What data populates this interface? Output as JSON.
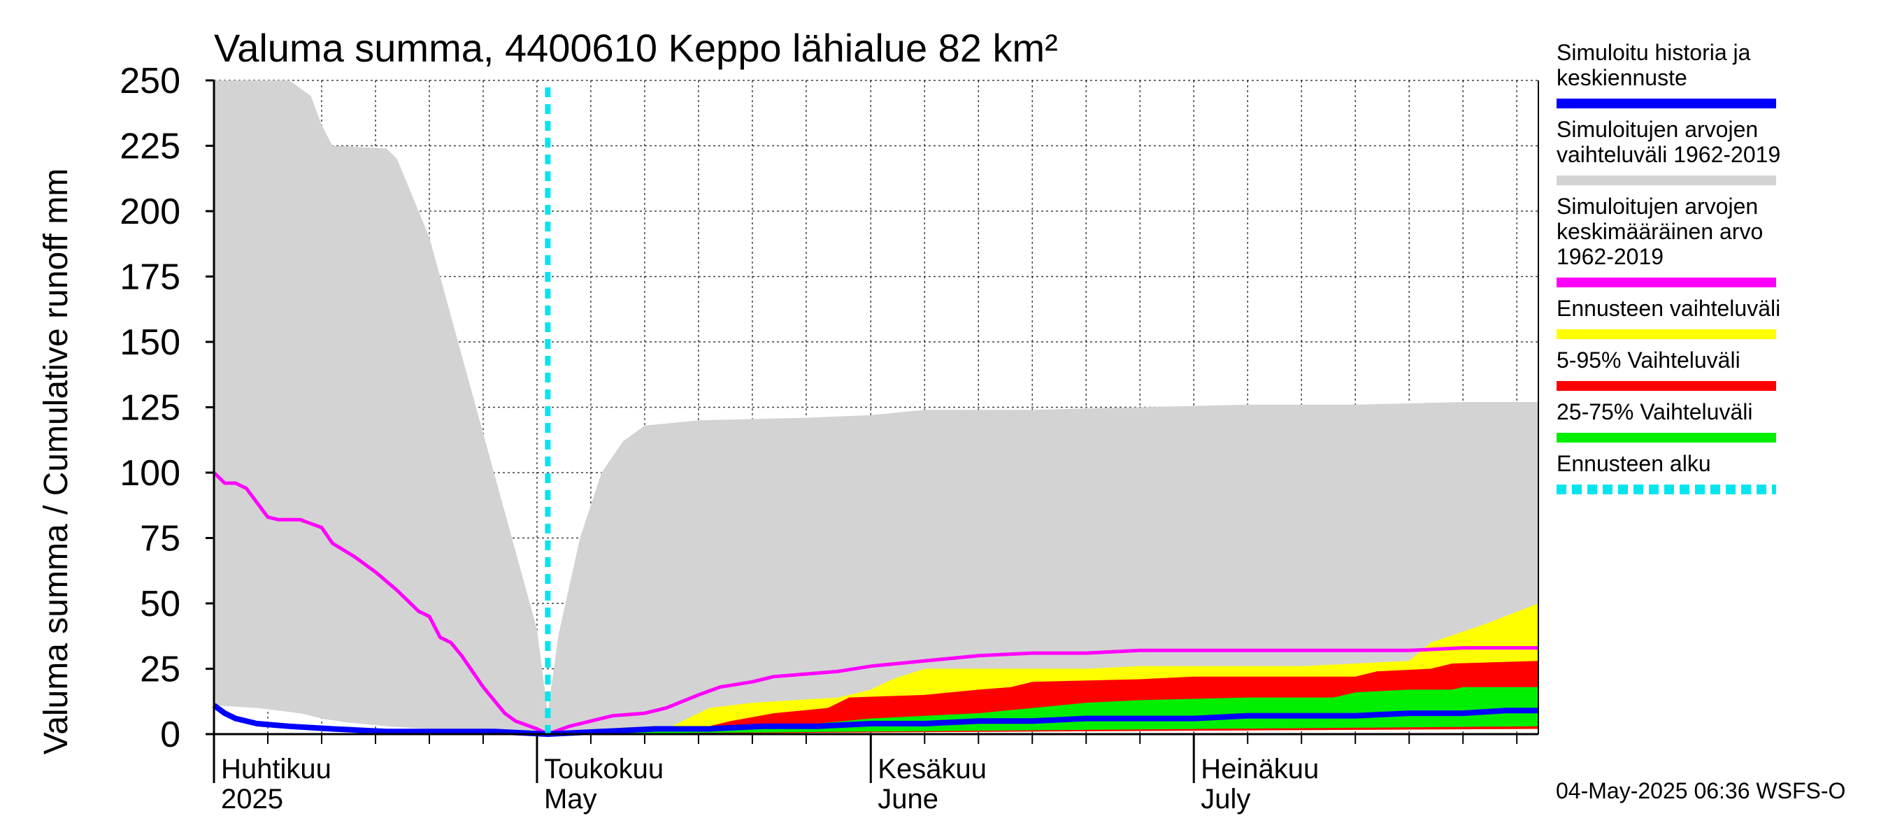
{
  "chart_data": {
    "type": "area",
    "title": "Valuma summa, 4400610 Keppo lähialue 82 km²",
    "ylabel": "Valuma summa / Cumulative runoff    mm",
    "xlabel": "",
    "ylim": [
      0,
      250
    ],
    "yticks": [
      "0",
      "25",
      "50",
      "75",
      "100",
      "125",
      "150",
      "175",
      "200",
      "225",
      "250"
    ],
    "x_unit": "day of season (day 0 = 1 April 2025)",
    "xlim": [
      0,
      123
    ],
    "forecast_start_day": 31,
    "months": [
      {
        "label_fi": "Huhtikuu",
        "label_en": "2025",
        "day": 0
      },
      {
        "label_fi": "Toukokuu",
        "label_en": "May",
        "day": 30
      },
      {
        "label_fi": "Kesäkuu",
        "label_en": "June",
        "day": 61
      },
      {
        "label_fi": "Heinäkuu",
        "label_en": "July",
        "day": 91
      }
    ],
    "grid_days": [
      0,
      5,
      10,
      15,
      20,
      25,
      30,
      35,
      40,
      45,
      50,
      55,
      61,
      66,
      71,
      76,
      81,
      86,
      91,
      96,
      101,
      106,
      111,
      116,
      121
    ],
    "series": [
      {
        "name": "Simuloitujen arvojen vaihteluväli 1962-2019",
        "role": "historical-range",
        "color": "#d3d3d3",
        "upper": [
          [
            0,
            250
          ],
          [
            7,
            250
          ],
          [
            9,
            244
          ],
          [
            10,
            233
          ],
          [
            11,
            225
          ],
          [
            16,
            224
          ],
          [
            17,
            220
          ],
          [
            18,
            210
          ],
          [
            20,
            190
          ],
          [
            22,
            160
          ],
          [
            24,
            130
          ],
          [
            26,
            100
          ],
          [
            28,
            70
          ],
          [
            30,
            40
          ],
          [
            31,
            8
          ],
          [
            32,
            38
          ],
          [
            34,
            75
          ],
          [
            36,
            100
          ],
          [
            38,
            112
          ],
          [
            40,
            118
          ],
          [
            45,
            120
          ],
          [
            55,
            121
          ],
          [
            61,
            122
          ],
          [
            66,
            124
          ],
          [
            76,
            124
          ],
          [
            86,
            125
          ],
          [
            96,
            126
          ],
          [
            106,
            126
          ],
          [
            116,
            127
          ],
          [
            123,
            127
          ]
        ],
        "lower": [
          [
            0,
            11
          ],
          [
            4,
            10
          ],
          [
            8,
            8
          ],
          [
            11,
            5
          ],
          [
            16,
            3
          ],
          [
            20,
            2
          ],
          [
            26,
            1
          ],
          [
            31,
            0
          ],
          [
            40,
            1
          ],
          [
            50,
            1
          ],
          [
            60,
            1
          ],
          [
            70,
            2
          ],
          [
            80,
            2
          ],
          [
            91,
            2
          ],
          [
            100,
            2
          ],
          [
            110,
            2
          ],
          [
            123,
            2
          ]
        ]
      },
      {
        "name": "Ennusteen vaihteluväli",
        "role": "forecast-range",
        "color": "#ffff00",
        "upper": [
          [
            31,
            0
          ],
          [
            42,
            2
          ],
          [
            44,
            6
          ],
          [
            46,
            10
          ],
          [
            50,
            12
          ],
          [
            58,
            14
          ],
          [
            61,
            17
          ],
          [
            63,
            21
          ],
          [
            66,
            25
          ],
          [
            81,
            25
          ],
          [
            86,
            26
          ],
          [
            91,
            26
          ],
          [
            101,
            26
          ],
          [
            111,
            28
          ],
          [
            113,
            35
          ],
          [
            118,
            42
          ],
          [
            123,
            50
          ]
        ],
        "lower": [
          [
            31,
            0
          ],
          [
            123,
            2
          ]
        ]
      },
      {
        "name": "5-95% Vaihteluväli",
        "role": "p5-p95",
        "color": "#ff0000",
        "upper": [
          [
            31,
            0
          ],
          [
            45,
            2
          ],
          [
            48,
            5
          ],
          [
            52,
            8
          ],
          [
            57,
            10
          ],
          [
            59,
            14
          ],
          [
            66,
            15
          ],
          [
            71,
            17
          ],
          [
            74,
            18
          ],
          [
            76,
            20
          ],
          [
            86,
            21
          ],
          [
            91,
            22
          ],
          [
            106,
            22
          ],
          [
            108,
            24
          ],
          [
            113,
            25
          ],
          [
            115,
            27
          ],
          [
            123,
            28
          ]
        ],
        "lower": [
          [
            31,
            0
          ],
          [
            123,
            2
          ]
        ]
      },
      {
        "name": "25-75% Vaihteluväli",
        "role": "p25-p75",
        "color": "#00ee00",
        "upper": [
          [
            31,
            0
          ],
          [
            50,
            2
          ],
          [
            56,
            4
          ],
          [
            61,
            6
          ],
          [
            71,
            8
          ],
          [
            76,
            10
          ],
          [
            81,
            12
          ],
          [
            86,
            13
          ],
          [
            96,
            14
          ],
          [
            104,
            14
          ],
          [
            106,
            16
          ],
          [
            111,
            17
          ],
          [
            115,
            17
          ],
          [
            116,
            18
          ],
          [
            123,
            18
          ]
        ],
        "lower": [
          [
            31,
            0
          ],
          [
            123,
            3
          ]
        ]
      },
      {
        "name": "Simuloitujen arvojen keskimääräinen arvo 1962-2019",
        "role": "historical-mean",
        "color": "#ff00ff",
        "points": [
          [
            0,
            100
          ],
          [
            1,
            96
          ],
          [
            2,
            96
          ],
          [
            3,
            94
          ],
          [
            5,
            83
          ],
          [
            6,
            82
          ],
          [
            8,
            82
          ],
          [
            10,
            79
          ],
          [
            11,
            73
          ],
          [
            13,
            68
          ],
          [
            15,
            62
          ],
          [
            17,
            55
          ],
          [
            19,
            47
          ],
          [
            20,
            45
          ],
          [
            21,
            37
          ],
          [
            22,
            35
          ],
          [
            23,
            30
          ],
          [
            25,
            18
          ],
          [
            27,
            8
          ],
          [
            28,
            5
          ],
          [
            30,
            2
          ],
          [
            31,
            0
          ],
          [
            33,
            3
          ],
          [
            35,
            5
          ],
          [
            37,
            7
          ],
          [
            40,
            8
          ],
          [
            42,
            10
          ],
          [
            45,
            15
          ],
          [
            47,
            18
          ],
          [
            50,
            20
          ],
          [
            52,
            22
          ],
          [
            55,
            23
          ],
          [
            58,
            24
          ],
          [
            61,
            26
          ],
          [
            66,
            28
          ],
          [
            71,
            30
          ],
          [
            76,
            31
          ],
          [
            81,
            31
          ],
          [
            86,
            32
          ],
          [
            91,
            32
          ],
          [
            101,
            32
          ],
          [
            111,
            32
          ],
          [
            116,
            33
          ],
          [
            123,
            33
          ]
        ]
      },
      {
        "name": "Simuloitu historia ja keskiennuste",
        "role": "simulated-median",
        "color": "#0000ff",
        "points": [
          [
            0,
            11
          ],
          [
            1,
            8
          ],
          [
            2,
            6
          ],
          [
            4,
            4
          ],
          [
            7,
            3
          ],
          [
            11,
            2
          ],
          [
            16,
            1
          ],
          [
            21,
            1
          ],
          [
            26,
            1
          ],
          [
            31,
            0
          ],
          [
            36,
            1
          ],
          [
            41,
            2
          ],
          [
            46,
            2
          ],
          [
            51,
            3
          ],
          [
            56,
            3
          ],
          [
            61,
            4
          ],
          [
            66,
            4
          ],
          [
            71,
            5
          ],
          [
            76,
            5
          ],
          [
            81,
            6
          ],
          [
            86,
            6
          ],
          [
            91,
            6
          ],
          [
            96,
            7
          ],
          [
            101,
            7
          ],
          [
            106,
            7
          ],
          [
            111,
            8
          ],
          [
            116,
            8
          ],
          [
            120,
            9
          ],
          [
            123,
            9
          ]
        ]
      }
    ],
    "legend_position": "right",
    "legend": [
      {
        "lines": [
          "Simuloitu historia ja",
          "keskiennuste"
        ],
        "color": "#0000ff",
        "style": "solid"
      },
      {
        "lines": [
          "Simuloitujen arvojen",
          "vaihteluväli 1962-2019"
        ],
        "color": "#d3d3d3",
        "style": "solid"
      },
      {
        "lines": [
          "Simuloitujen arvojen",
          "keskimääräinen arvo",
          "   1962-2019"
        ],
        "color": "#ff00ff",
        "style": "solid"
      },
      {
        "lines": [
          "Ennusteen vaihteluväli"
        ],
        "color": "#ffff00",
        "style": "solid"
      },
      {
        "lines": [
          "5-95% Vaihteluväli"
        ],
        "color": "#ff0000",
        "style": "solid"
      },
      {
        "lines": [
          "25-75% Vaihteluväli"
        ],
        "color": "#00ee00",
        "style": "solid"
      },
      {
        "lines": [
          "Ennusteen alku"
        ],
        "color": "#00e5ee",
        "style": "dashed"
      }
    ],
    "forecast_line_color": "#00e5ee",
    "footer": "04-May-2025 06:36 WSFS-O"
  }
}
